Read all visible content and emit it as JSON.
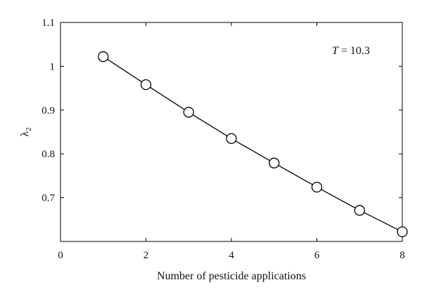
{
  "chart_data": {
    "type": "line",
    "title": "",
    "xlabel": "Number of pesticide applications",
    "ylabel": "λ",
    "ylabel_sub": "2",
    "annotation": {
      "var": "T",
      "text": " = 10.3"
    },
    "xlim": [
      0,
      8
    ],
    "ylim": [
      0.6,
      1.1
    ],
    "x_ticks": [
      0,
      2,
      4,
      6,
      8
    ],
    "y_ticks": [
      0.7,
      0.8,
      0.9,
      1,
      1.1
    ],
    "x_tick_labels": [
      "0",
      "2",
      "4",
      "6",
      "8"
    ],
    "y_tick_labels": [
      "0.7",
      "0.8",
      "0.9",
      "1",
      "1.1"
    ],
    "grid": false,
    "series": [
      {
        "x": [
          1,
          2,
          3,
          4,
          5,
          6,
          7,
          8
        ],
        "y": [
          1.022,
          0.958,
          0.895,
          0.835,
          0.779,
          0.724,
          0.671,
          0.622
        ],
        "marker": "open-circle",
        "line": "solid",
        "color": "#000000"
      }
    ]
  }
}
